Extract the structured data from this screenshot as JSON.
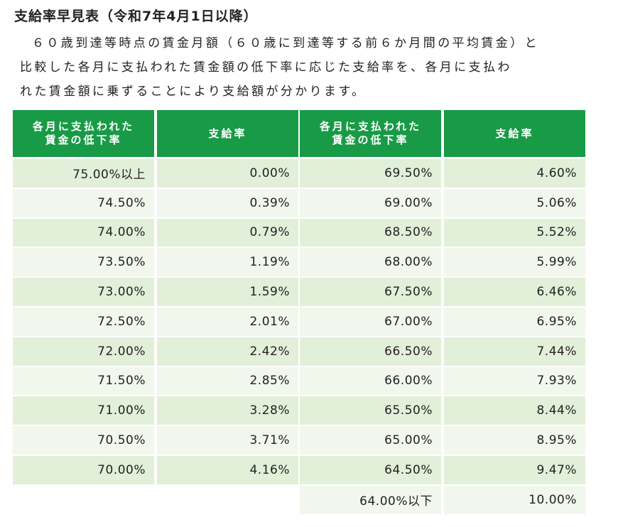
{
  "title": "支給率早見表（令和7年4月1日以降）",
  "paragraph": [
    "６０歳到達等時点の賃金月額（６０歳に到達等する前６か月間の平均賃金）と",
    "比較した各月に支払われた賃金額の低下率に応じた支給率を、各月に支払わ",
    "れた賃金額に乗ずることにより支給額が分かります。"
  ],
  "table": {
    "headers": [
      [
        "各月に支払われた",
        "賃金の低下率"
      ],
      [
        "支給率"
      ],
      [
        "各月に支払われた",
        "賃金の低下率"
      ],
      [
        "支給率"
      ]
    ],
    "rows": [
      [
        "75.00%以上",
        "0.00%",
        "69.50%",
        "4.60%"
      ],
      [
        "74.50%",
        "0.39%",
        "69.00%",
        "5.06%"
      ],
      [
        "74.00%",
        "0.79%",
        "68.50%",
        "5.52%"
      ],
      [
        "73.50%",
        "1.19%",
        "68.00%",
        "5.99%"
      ],
      [
        "73.00%",
        "1.59%",
        "67.50%",
        "6.46%"
      ],
      [
        "72.50%",
        "2.01%",
        "67.00%",
        "6.95%"
      ],
      [
        "72.00%",
        "2.42%",
        "66.50%",
        "7.44%"
      ],
      [
        "71.50%",
        "2.85%",
        "66.00%",
        "7.93%"
      ],
      [
        "71.00%",
        "3.28%",
        "65.50%",
        "8.44%"
      ],
      [
        "70.50%",
        "3.71%",
        "65.00%",
        "8.95%"
      ],
      [
        "70.00%",
        "4.16%",
        "64.50%",
        "9.47%"
      ],
      [
        null,
        null,
        "64.00%以下",
        "10.00%"
      ]
    ]
  }
}
